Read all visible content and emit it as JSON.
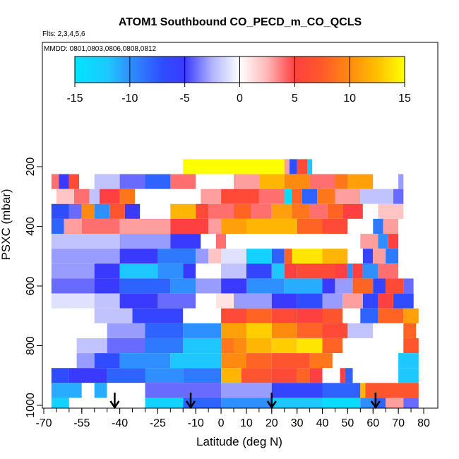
{
  "chart_data": {
    "type": "heatmap",
    "title": "ATOM1 Southbound CO_PECD_m_CO_QCLS",
    "subtitle_flights": "Flts: 2,3,4,5,6",
    "subtitle_dates": "MMDD: 0801,0803,0806,0808,0812",
    "xlabel": "Latitude (deg N)",
    "ylabel": "PSXC (mbar)",
    "xlim": [
      -70,
      80
    ],
    "ylim": [
      1000,
      0
    ],
    "x_ticks": [
      -70,
      -55,
      -40,
      -25,
      -10,
      0,
      10,
      20,
      30,
      40,
      50,
      60,
      70,
      80
    ],
    "y_ticks": [
      200,
      400,
      600,
      800,
      1000
    ],
    "colorbar": {
      "ticks": [
        -15,
        -10,
        -5,
        0,
        5,
        10,
        15
      ],
      "range": [
        -15,
        15
      ],
      "colors": [
        [
          -15,
          "#00e5ff"
        ],
        [
          -12,
          "#1ec8ff"
        ],
        [
          -10,
          "#2f8fff"
        ],
        [
          -7,
          "#2f4dff"
        ],
        [
          -5,
          "#3a3aff"
        ],
        [
          -2.5,
          "#b0b4ff"
        ],
        [
          0,
          "#ffffff"
        ],
        [
          2.5,
          "#ffb6b6"
        ],
        [
          5,
          "#ff4040"
        ],
        [
          7.5,
          "#ff5a2a"
        ],
        [
          10,
          "#ff8a10"
        ],
        [
          12.5,
          "#ffc000"
        ],
        [
          15,
          "#ffff00"
        ]
      ]
    },
    "arrows_lat": [
      -42,
      -12,
      20,
      61
    ],
    "pressure_bins": [
      {
        "p": 200,
        "segments": [
          [
            -15,
            25,
            15
          ],
          [
            25,
            27,
            3
          ],
          [
            27,
            30,
            -7
          ],
          [
            30,
            34,
            6
          ],
          [
            34,
            36,
            -12
          ]
        ]
      },
      {
        "p": 250,
        "segments": [
          [
            -67,
            -64,
            4
          ],
          [
            -64,
            -60,
            -5
          ],
          [
            -60,
            -56,
            6
          ],
          [
            -56,
            -50,
            0
          ],
          [
            -50,
            -40,
            -2
          ],
          [
            -40,
            -30,
            -4
          ],
          [
            -30,
            -20,
            -8
          ],
          [
            -20,
            -10,
            4
          ],
          [
            -10,
            5,
            0
          ],
          [
            5,
            15,
            3
          ],
          [
            15,
            25,
            12
          ],
          [
            25,
            35,
            10
          ],
          [
            35,
            45,
            4
          ],
          [
            45,
            50,
            9
          ],
          [
            50,
            60,
            11
          ],
          [
            60,
            70,
            0
          ],
          [
            70,
            72,
            -3
          ]
        ]
      },
      {
        "p": 300,
        "segments": [
          [
            -65,
            -58,
            2
          ],
          [
            -58,
            -52,
            4
          ],
          [
            -52,
            -48,
            -2
          ],
          [
            -48,
            -40,
            5
          ],
          [
            -40,
            -34,
            9
          ],
          [
            -34,
            -25,
            0
          ],
          [
            -25,
            -8,
            0
          ],
          [
            -8,
            0,
            3
          ],
          [
            0,
            15,
            6
          ],
          [
            15,
            25,
            4
          ],
          [
            25,
            28,
            -14
          ],
          [
            28,
            32,
            8
          ],
          [
            32,
            38,
            -8
          ],
          [
            38,
            45,
            9
          ],
          [
            45,
            55,
            3
          ],
          [
            55,
            68,
            -2
          ],
          [
            68,
            72,
            -4
          ]
        ]
      },
      {
        "p": 350,
        "segments": [
          [
            -67,
            -60,
            -7
          ],
          [
            -60,
            -55,
            -4
          ],
          [
            -55,
            -50,
            10
          ],
          [
            -50,
            -44,
            -10
          ],
          [
            -44,
            -38,
            7
          ],
          [
            -38,
            -32,
            -5
          ],
          [
            -32,
            -20,
            0
          ],
          [
            -20,
            -10,
            12
          ],
          [
            -10,
            -5,
            6
          ],
          [
            -5,
            5,
            4
          ],
          [
            5,
            12,
            8
          ],
          [
            12,
            20,
            4
          ],
          [
            20,
            28,
            11
          ],
          [
            28,
            35,
            9
          ],
          [
            35,
            42,
            4
          ],
          [
            42,
            48,
            8
          ],
          [
            48,
            56,
            5
          ],
          [
            56,
            62,
            0
          ],
          [
            62,
            72,
            2
          ]
        ]
      },
      {
        "p": 400,
        "segments": [
          [
            -67,
            -62,
            -8
          ],
          [
            -62,
            -55,
            3
          ],
          [
            -55,
            -40,
            4
          ],
          [
            -40,
            -20,
            3
          ],
          [
            -20,
            -5,
            5
          ],
          [
            -5,
            0,
            3
          ],
          [
            0,
            10,
            11
          ],
          [
            10,
            30,
            12
          ],
          [
            30,
            40,
            8
          ],
          [
            40,
            50,
            6
          ],
          [
            50,
            60,
            0
          ],
          [
            60,
            64,
            -9
          ],
          [
            64,
            70,
            3
          ]
        ]
      },
      {
        "p": 450,
        "segments": [
          [
            -67,
            -40,
            -2
          ],
          [
            -40,
            -20,
            -3
          ],
          [
            -20,
            -8,
            -5
          ],
          [
            -8,
            -2,
            0
          ],
          [
            -2,
            2,
            4
          ],
          [
            2,
            20,
            0
          ],
          [
            20,
            40,
            0
          ],
          [
            40,
            55,
            0
          ],
          [
            55,
            62,
            3
          ],
          [
            62,
            66,
            -10
          ],
          [
            66,
            70,
            5
          ]
        ]
      },
      {
        "p": 500,
        "segments": [
          [
            -67,
            -40,
            -3
          ],
          [
            -40,
            -25,
            -5
          ],
          [
            -25,
            -10,
            -9
          ],
          [
            -10,
            -5,
            -3
          ],
          [
            -5,
            0,
            2
          ],
          [
            0,
            10,
            -1
          ],
          [
            10,
            20,
            -13
          ],
          [
            20,
            25,
            -8
          ],
          [
            25,
            28,
            8
          ],
          [
            28,
            40,
            14
          ],
          [
            40,
            50,
            12
          ],
          [
            50,
            56,
            0
          ],
          [
            56,
            60,
            -6
          ],
          [
            60,
            65,
            3
          ],
          [
            65,
            70,
            -9
          ]
        ]
      },
      {
        "p": 550,
        "segments": [
          [
            -67,
            -50,
            -3
          ],
          [
            -50,
            -40,
            -5
          ],
          [
            -40,
            -25,
            -12
          ],
          [
            -25,
            -15,
            -10
          ],
          [
            -15,
            -10,
            -5
          ],
          [
            -10,
            0,
            0
          ],
          [
            0,
            10,
            -2
          ],
          [
            10,
            20,
            -6
          ],
          [
            20,
            25,
            -12
          ],
          [
            25,
            30,
            5
          ],
          [
            30,
            45,
            6
          ],
          [
            45,
            50,
            5
          ],
          [
            50,
            52,
            -10
          ],
          [
            52,
            56,
            5
          ],
          [
            56,
            62,
            -10
          ],
          [
            62,
            70,
            4
          ]
        ]
      },
      {
        "p": 600,
        "segments": [
          [
            -67,
            -50,
            -4
          ],
          [
            -50,
            -40,
            -5
          ],
          [
            -40,
            -20,
            -8
          ],
          [
            -20,
            -10,
            -10
          ],
          [
            -10,
            0,
            -3
          ],
          [
            0,
            10,
            -5
          ],
          [
            10,
            25,
            -10
          ],
          [
            25,
            40,
            -11
          ],
          [
            40,
            45,
            -5
          ],
          [
            45,
            52,
            -3
          ],
          [
            52,
            60,
            8
          ],
          [
            60,
            65,
            -6
          ],
          [
            65,
            72,
            6
          ],
          [
            72,
            76,
            -4
          ]
        ]
      },
      {
        "p": 650,
        "segments": [
          [
            -67,
            -50,
            -1
          ],
          [
            -50,
            -40,
            -2
          ],
          [
            -40,
            -25,
            -5
          ],
          [
            -25,
            -10,
            -4
          ],
          [
            -10,
            -2,
            0
          ],
          [
            -2,
            5,
            1
          ],
          [
            5,
            20,
            -3
          ],
          [
            20,
            30,
            -5
          ],
          [
            30,
            40,
            -7
          ],
          [
            40,
            48,
            -3
          ],
          [
            48,
            56,
            3
          ],
          [
            56,
            62,
            -6
          ],
          [
            62,
            68,
            5
          ],
          [
            68,
            76,
            -7
          ]
        ]
      },
      {
        "p": 700,
        "segments": [
          [
            -62,
            -50,
            0
          ],
          [
            -50,
            -35,
            -2
          ],
          [
            -35,
            -15,
            -6
          ],
          [
            -15,
            0,
            0
          ],
          [
            0,
            10,
            6
          ],
          [
            10,
            20,
            8
          ],
          [
            20,
            30,
            6
          ],
          [
            30,
            40,
            5
          ],
          [
            40,
            48,
            7
          ],
          [
            48,
            55,
            0
          ],
          [
            55,
            62,
            -8
          ],
          [
            62,
            72,
            8
          ],
          [
            72,
            78,
            11
          ]
        ]
      },
      {
        "p": 750,
        "segments": [
          [
            -57,
            -45,
            0
          ],
          [
            -45,
            -30,
            -3
          ],
          [
            -30,
            -15,
            -8
          ],
          [
            -15,
            0,
            -10
          ],
          [
            0,
            10,
            11
          ],
          [
            10,
            20,
            13
          ],
          [
            20,
            30,
            10
          ],
          [
            30,
            40,
            8
          ],
          [
            40,
            50,
            6
          ],
          [
            50,
            60,
            -2
          ],
          [
            60,
            72,
            0
          ],
          [
            72,
            77,
            8
          ]
        ]
      },
      {
        "p": 800,
        "segments": [
          [
            -57,
            -45,
            -2
          ],
          [
            -45,
            -30,
            -4
          ],
          [
            -30,
            -15,
            -9
          ],
          [
            -15,
            0,
            -12
          ],
          [
            0,
            5,
            9
          ],
          [
            5,
            10,
            10
          ],
          [
            10,
            20,
            12
          ],
          [
            20,
            30,
            13
          ],
          [
            30,
            40,
            14
          ],
          [
            40,
            48,
            8
          ],
          [
            48,
            55,
            0
          ],
          [
            55,
            65,
            0
          ],
          [
            65,
            72,
            0
          ],
          [
            72,
            78,
            7
          ]
        ]
      },
      {
        "p": 850,
        "segments": [
          [
            -57,
            -50,
            -3
          ],
          [
            -50,
            -40,
            -7
          ],
          [
            -40,
            -20,
            -10
          ],
          [
            -20,
            0,
            -12
          ],
          [
            0,
            10,
            10
          ],
          [
            10,
            20,
            8
          ],
          [
            20,
            35,
            7
          ],
          [
            35,
            44,
            9
          ],
          [
            44,
            48,
            0
          ],
          [
            48,
            55,
            0
          ],
          [
            55,
            70,
            0
          ],
          [
            70,
            78,
            -12
          ]
        ]
      },
      {
        "p": 900,
        "segments": [
          [
            -67,
            -60,
            -7
          ],
          [
            -60,
            -45,
            -5
          ],
          [
            -45,
            -30,
            -8
          ],
          [
            -30,
            -15,
            -10
          ],
          [
            -15,
            0,
            -9
          ],
          [
            0,
            8,
            12
          ],
          [
            8,
            20,
            7
          ],
          [
            20,
            30,
            6
          ],
          [
            30,
            35,
            8
          ],
          [
            35,
            40,
            5
          ],
          [
            40,
            47,
            0
          ],
          [
            47,
            49,
            5
          ],
          [
            49,
            52,
            -8
          ],
          [
            52,
            70,
            0
          ],
          [
            70,
            78,
            -12
          ]
        ]
      },
      {
        "p": 950,
        "segments": [
          [
            -67,
            -55,
            -11
          ],
          [
            -55,
            -50,
            0
          ],
          [
            -50,
            -45,
            -11
          ],
          [
            -45,
            -30,
            0
          ],
          [
            -30,
            0,
            -4
          ],
          [
            0,
            20,
            -3
          ],
          [
            20,
            40,
            -6
          ],
          [
            40,
            55,
            -8
          ],
          [
            55,
            57,
            12
          ],
          [
            57,
            78,
            7
          ]
        ]
      },
      {
        "p": 1000,
        "segments": [
          [
            -67,
            -60,
            -13
          ],
          [
            -60,
            -30,
            0
          ],
          [
            -30,
            -15,
            -13
          ],
          [
            -15,
            0,
            -8
          ],
          [
            0,
            20,
            -10
          ],
          [
            20,
            40,
            -12
          ],
          [
            40,
            55,
            -14
          ],
          [
            55,
            60,
            -10
          ],
          [
            60,
            65,
            -8
          ],
          [
            65,
            72,
            3
          ],
          [
            72,
            78,
            -4
          ]
        ]
      }
    ]
  }
}
